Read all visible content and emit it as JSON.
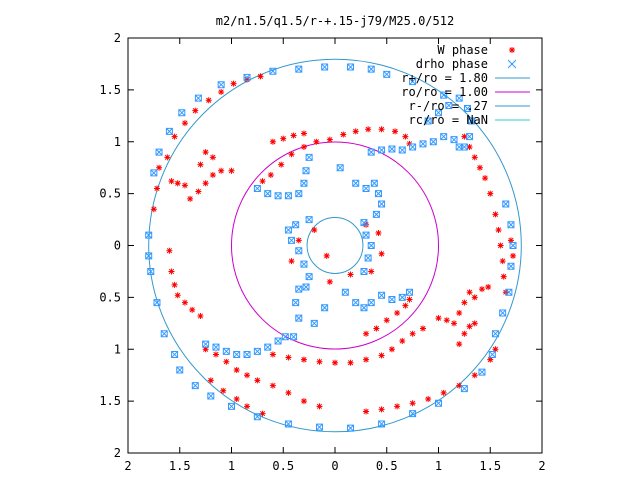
{
  "chart_data": {
    "type": "scatter",
    "title": "m2/n1.5/q1.5/r-+.15-j79/M25.0/512",
    "xlabel": "",
    "ylabel": "",
    "xlim": [
      -2,
      2
    ],
    "ylim": [
      -2,
      2
    ],
    "x_tick_values": [
      -2,
      -1.5,
      -1,
      -0.5,
      0,
      0.5,
      1,
      1.5,
      2
    ],
    "x_tick_labels": [
      "2",
      "1.5",
      "1",
      "0.5",
      "0",
      "0.5",
      "1",
      "1.5",
      "2"
    ],
    "y_tick_values": [
      2,
      1.5,
      1,
      0.5,
      0,
      -0.5,
      -1,
      -1.5,
      -2
    ],
    "y_tick_labels": [
      "2",
      "1.5",
      "1",
      "0.5",
      "0",
      "0.5",
      "1",
      "1.5",
      "2"
    ],
    "grid": false,
    "legend_position": "top-right",
    "series": [
      {
        "name": "W phase",
        "marker": "plus-star",
        "color": "#ff0000",
        "points": [
          [
            -1.75,
            0.35
          ],
          [
            -1.72,
            0.55
          ],
          [
            -1.7,
            0.75
          ],
          [
            -1.62,
            0.85
          ],
          [
            -1.55,
            1.05
          ],
          [
            -1.45,
            1.18
          ],
          [
            -1.35,
            1.3
          ],
          [
            -1.22,
            1.4
          ],
          [
            -1.1,
            1.48
          ],
          [
            -0.98,
            1.56
          ],
          [
            -0.85,
            1.6
          ],
          [
            -0.72,
            1.63
          ],
          [
            -1.58,
            0.62
          ],
          [
            -1.52,
            0.6
          ],
          [
            -1.45,
            0.58
          ],
          [
            -1.4,
            0.45
          ],
          [
            -1.32,
            0.52
          ],
          [
            -1.25,
            0.6
          ],
          [
            -1.18,
            0.68
          ],
          [
            -1.1,
            0.72
          ],
          [
            -1.0,
            0.72
          ],
          [
            -1.25,
            0.9
          ],
          [
            -1.18,
            0.85
          ],
          [
            -1.3,
            0.78
          ],
          [
            -0.7,
            0.62
          ],
          [
            -0.62,
            0.68
          ],
          [
            -0.52,
            0.78
          ],
          [
            -0.42,
            0.88
          ],
          [
            -0.3,
            0.95
          ],
          [
            -0.18,
            1.0
          ],
          [
            -0.05,
            1.02
          ],
          [
            0.08,
            1.07
          ],
          [
            0.2,
            1.1
          ],
          [
            0.32,
            1.12
          ],
          [
            0.45,
            1.12
          ],
          [
            0.58,
            1.1
          ],
          [
            0.68,
            1.05
          ],
          [
            0.72,
            0.98
          ],
          [
            -0.6,
            1.0
          ],
          [
            -0.5,
            1.03
          ],
          [
            -0.4,
            1.06
          ],
          [
            -0.3,
            1.08
          ],
          [
            -1.6,
            -0.05
          ],
          [
            -1.58,
            -0.25
          ],
          [
            -1.55,
            -0.38
          ],
          [
            -1.52,
            -0.48
          ],
          [
            -1.45,
            -0.55
          ],
          [
            -1.38,
            -0.62
          ],
          [
            -1.3,
            -0.68
          ],
          [
            -1.25,
            -1.0
          ],
          [
            -1.15,
            -1.05
          ],
          [
            -1.05,
            -1.12
          ],
          [
            -0.95,
            -1.2
          ],
          [
            -1.2,
            -1.3
          ],
          [
            -1.08,
            -1.4
          ],
          [
            -0.95,
            -1.48
          ],
          [
            -0.85,
            -1.55
          ],
          [
            -0.7,
            -1.62
          ],
          [
            -0.6,
            -1.05
          ],
          [
            -0.45,
            -1.08
          ],
          [
            -0.3,
            -1.1
          ],
          [
            -0.15,
            -1.12
          ],
          [
            0.0,
            -1.13
          ],
          [
            0.15,
            -1.13
          ],
          [
            0.3,
            -1.1
          ],
          [
            0.45,
            -1.06
          ],
          [
            0.55,
            -1.0
          ],
          [
            0.65,
            -0.92
          ],
          [
            0.75,
            -0.85
          ],
          [
            0.85,
            -0.8
          ],
          [
            0.3,
            -0.85
          ],
          [
            0.4,
            -0.8
          ],
          [
            0.5,
            -0.72
          ],
          [
            0.6,
            -0.65
          ],
          [
            0.68,
            -0.58
          ],
          [
            0.72,
            -0.52
          ],
          [
            1.0,
            -0.7
          ],
          [
            1.08,
            -0.72
          ],
          [
            1.15,
            -0.75
          ],
          [
            1.2,
            -0.65
          ],
          [
            1.25,
            -0.55
          ],
          [
            1.3,
            -0.45
          ],
          [
            1.35,
            -0.5
          ],
          [
            1.42,
            -0.42
          ],
          [
            1.48,
            -0.4
          ],
          [
            1.25,
            -0.85
          ],
          [
            1.3,
            -0.78
          ],
          [
            1.35,
            -0.75
          ],
          [
            1.2,
            -0.95
          ],
          [
            1.5,
            0.5
          ],
          [
            1.55,
            0.3
          ],
          [
            1.58,
            0.15
          ],
          [
            1.6,
            0.0
          ],
          [
            1.62,
            -0.15
          ],
          [
            1.63,
            -0.3
          ],
          [
            1.65,
            -0.45
          ],
          [
            1.7,
            0.05
          ],
          [
            1.72,
            -0.1
          ],
          [
            1.45,
            0.65
          ],
          [
            1.4,
            0.75
          ],
          [
            1.35,
            0.85
          ],
          [
            1.3,
            0.95
          ],
          [
            1.25,
            1.05
          ],
          [
            0.3,
            -1.6
          ],
          [
            0.45,
            -1.58
          ],
          [
            0.6,
            -1.55
          ],
          [
            0.75,
            -1.52
          ],
          [
            0.9,
            -1.48
          ],
          [
            1.05,
            -1.42
          ],
          [
            1.2,
            -1.35
          ],
          [
            1.35,
            -1.25
          ],
          [
            1.5,
            -1.1
          ],
          [
            1.55,
            -1.0
          ],
          [
            -0.08,
            -0.1
          ],
          [
            -0.05,
            -0.35
          ],
          [
            0.15,
            -0.28
          ],
          [
            0.35,
            -0.25
          ],
          [
            0.45,
            -0.08
          ],
          [
            0.42,
            0.12
          ],
          [
            0.3,
            0.2
          ],
          [
            -0.2,
            0.15
          ],
          [
            -0.35,
            0.05
          ],
          [
            -0.42,
            -0.15
          ],
          [
            -0.85,
            -1.25
          ],
          [
            -0.75,
            -1.3
          ],
          [
            -0.6,
            -1.35
          ],
          [
            -0.45,
            -1.42
          ],
          [
            -0.3,
            -1.5
          ],
          [
            -0.15,
            -1.55
          ]
        ]
      },
      {
        "name": "drho phase",
        "marker": "x-square",
        "color": "#3399ff",
        "points": [
          [
            -1.8,
            0.1
          ],
          [
            -1.8,
            -0.1
          ],
          [
            -1.78,
            -0.25
          ],
          [
            -1.72,
            -0.55
          ],
          [
            -1.65,
            -0.85
          ],
          [
            -1.55,
            -1.05
          ],
          [
            -1.5,
            -1.2
          ],
          [
            -1.35,
            -1.35
          ],
          [
            -1.2,
            -1.45
          ],
          [
            -1.0,
            -1.55
          ],
          [
            -0.75,
            -1.65
          ],
          [
            -0.45,
            -1.72
          ],
          [
            -0.15,
            -1.75
          ],
          [
            0.15,
            -1.76
          ],
          [
            0.45,
            -1.72
          ],
          [
            0.75,
            -1.62
          ],
          [
            1.0,
            -1.52
          ],
          [
            1.25,
            -1.38
          ],
          [
            1.42,
            -1.22
          ],
          [
            1.52,
            -1.05
          ],
          [
            -1.75,
            0.7
          ],
          [
            -1.7,
            0.9
          ],
          [
            -1.6,
            1.1
          ],
          [
            -1.48,
            1.28
          ],
          [
            -1.32,
            1.42
          ],
          [
            -1.1,
            1.55
          ],
          [
            -0.85,
            1.62
          ],
          [
            -0.6,
            1.68
          ],
          [
            -0.35,
            1.7
          ],
          [
            -0.1,
            1.72
          ],
          [
            0.15,
            1.72
          ],
          [
            0.35,
            1.7
          ],
          [
            -1.25,
            -0.95
          ],
          [
            -1.15,
            -0.98
          ],
          [
            -1.05,
            -1.02
          ],
          [
            -0.95,
            -1.05
          ],
          [
            -0.85,
            -1.05
          ],
          [
            -0.75,
            -1.02
          ],
          [
            -0.65,
            -0.98
          ],
          [
            -0.55,
            -0.92
          ],
          [
            -0.48,
            -0.88
          ],
          [
            -0.4,
            -0.88
          ],
          [
            -0.35,
            -0.7
          ],
          [
            -0.38,
            -0.55
          ],
          [
            -0.35,
            -0.42
          ],
          [
            -0.28,
            -0.4
          ],
          [
            -0.25,
            -0.3
          ],
          [
            -0.3,
            -0.18
          ],
          [
            -0.35,
            -0.05
          ],
          [
            -0.42,
            0.05
          ],
          [
            -0.45,
            0.15
          ],
          [
            -0.38,
            0.2
          ],
          [
            -0.25,
            0.25
          ],
          [
            0.1,
            -0.45
          ],
          [
            0.2,
            -0.55
          ],
          [
            0.28,
            -0.6
          ],
          [
            0.35,
            -0.55
          ],
          [
            0.45,
            -0.48
          ],
          [
            0.55,
            -0.52
          ],
          [
            0.65,
            -0.5
          ],
          [
            0.72,
            -0.45
          ],
          [
            0.28,
            -0.25
          ],
          [
            0.32,
            -0.12
          ],
          [
            0.35,
            0.0
          ],
          [
            0.3,
            0.1
          ],
          [
            0.28,
            0.22
          ],
          [
            -0.75,
            0.55
          ],
          [
            -0.65,
            0.5
          ],
          [
            -0.55,
            0.48
          ],
          [
            -0.45,
            0.48
          ],
          [
            -0.35,
            0.5
          ],
          [
            -0.3,
            0.6
          ],
          [
            -0.28,
            0.72
          ],
          [
            -0.25,
            0.85
          ],
          [
            0.2,
            0.6
          ],
          [
            0.3,
            0.55
          ],
          [
            0.38,
            0.6
          ],
          [
            0.42,
            0.5
          ],
          [
            0.45,
            0.4
          ],
          [
            0.4,
            0.3
          ],
          [
            0.35,
            0.9
          ],
          [
            0.45,
            0.92
          ],
          [
            0.55,
            0.93
          ],
          [
            0.65,
            0.92
          ],
          [
            0.75,
            0.95
          ],
          [
            0.85,
            0.98
          ],
          [
            0.95,
            1.0
          ],
          [
            1.05,
            1.05
          ],
          [
            1.15,
            1.02
          ],
          [
            1.2,
            0.95
          ],
          [
            0.9,
            1.2
          ],
          [
            1.0,
            1.28
          ],
          [
            1.1,
            1.35
          ],
          [
            1.2,
            1.42
          ],
          [
            1.28,
            1.32
          ],
          [
            1.32,
            1.2
          ],
          [
            1.3,
            1.05
          ],
          [
            1.25,
            0.95
          ],
          [
            1.65,
            0.4
          ],
          [
            1.7,
            0.2
          ],
          [
            1.72,
            0.0
          ],
          [
            1.7,
            -0.2
          ],
          [
            1.68,
            -0.45
          ],
          [
            1.62,
            -0.65
          ],
          [
            1.55,
            -0.85
          ],
          [
            0.5,
            1.65
          ],
          [
            0.75,
            1.58
          ],
          [
            1.05,
            1.45
          ],
          [
            0.05,
            0.75
          ],
          [
            -0.1,
            -0.6
          ],
          [
            -0.2,
            -0.75
          ]
        ]
      }
    ],
    "circles": [
      {
        "name": "r+/ro = 1.80",
        "radius": 1.8,
        "color": "#3399cc"
      },
      {
        "name": "ro/ro = 1.00",
        "radius": 1.0,
        "color": "#cc00cc"
      },
      {
        "name": "r-/ro = .27",
        "radius": 0.27,
        "color": "#3399cc"
      },
      {
        "name": "rc/ro = NaN",
        "radius": null,
        "color": "#33cccc"
      }
    ]
  }
}
